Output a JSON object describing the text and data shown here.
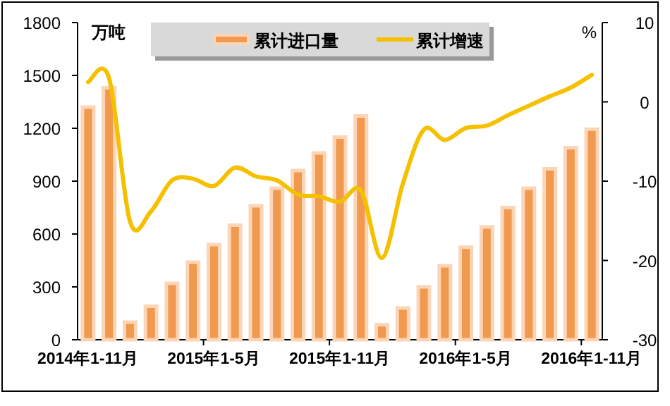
{
  "chart_data": {
    "type": "bar",
    "ylabel": "万吨",
    "y2label": "%",
    "legend": "top",
    "categories": [
      "2014年1-11月",
      null,
      null,
      null,
      null,
      null,
      "2015年1-5月",
      null,
      null,
      null,
      null,
      null,
      "2015年1-11月",
      null,
      null,
      null,
      null,
      null,
      "2016年1-5月",
      null,
      null,
      null,
      null,
      null,
      "2016年1-11月"
    ],
    "series": [
      {
        "name": "累计进口量",
        "color": "#f0994f",
        "values": [
          1320,
          1430,
          100,
          190,
          320,
          440,
          540,
          650,
          760,
          860,
          960,
          1060,
          1150,
          1270,
          85,
          180,
          300,
          420,
          525,
          640,
          750,
          860,
          970,
          1090,
          1195
        ]
      },
      {
        "name": "累计增速",
        "type": "line",
        "axis": "y2",
        "color": "#f5c000",
        "values": [
          2.5,
          3.0,
          -15.1,
          -13.8,
          -9.9,
          -9.7,
          -10.6,
          -8.3,
          -9.4,
          -9.9,
          -11.7,
          -11.9,
          -12.6,
          -11.2,
          -19.7,
          -10.3,
          -3.5,
          -4.8,
          -3.3,
          -3.0,
          -1.7,
          -0.5,
          0.7,
          1.8,
          3.4
        ]
      }
    ],
    "ylim": [
      0,
      1800
    ],
    "yticks": [
      0,
      300,
      600,
      900,
      1200,
      1500,
      1800
    ],
    "y2lim": [
      -30,
      10
    ],
    "y2ticks": [
      -30,
      -20,
      -10,
      0,
      10
    ]
  }
}
